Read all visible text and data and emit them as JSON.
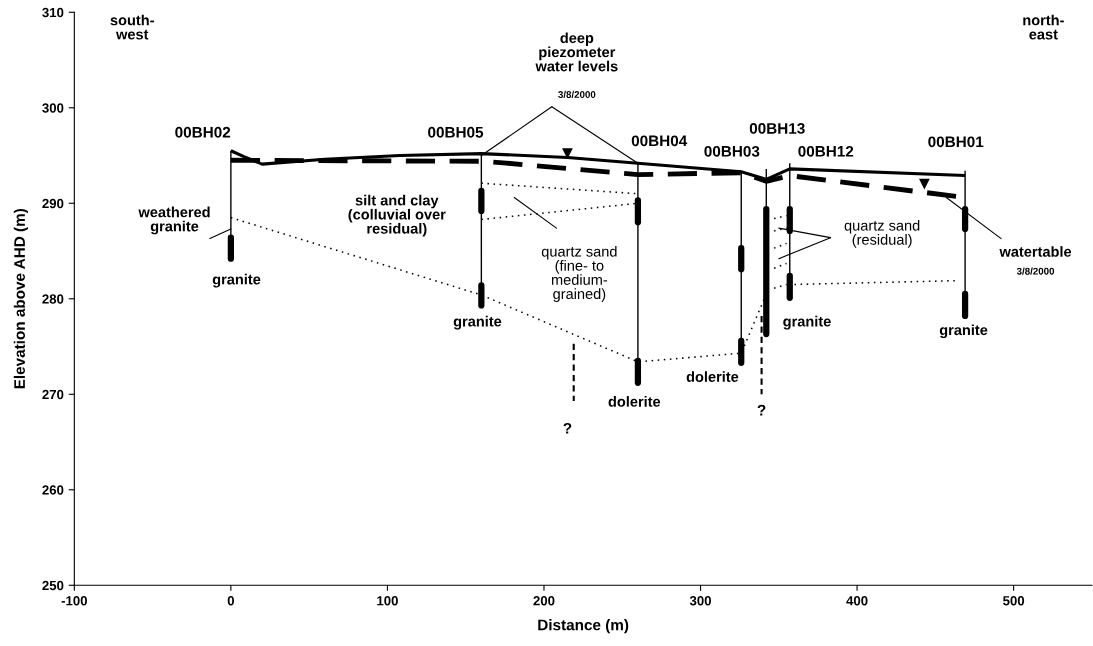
{
  "chart_data": {
    "type": "line",
    "xlabel": "Distance (m)",
    "ylabel": "Elevation above AHD (m)",
    "xlim": [
      -100,
      550
    ],
    "ylim": [
      250,
      310
    ],
    "xticks": [
      -100,
      0,
      100,
      200,
      300,
      400,
      500
    ],
    "yticks": [
      250,
      260,
      270,
      280,
      290,
      300,
      310
    ],
    "grid": false,
    "series": [
      {
        "color": "#000000",
        "line_style": "solid",
        "x": [
          0,
          8,
          20,
          60,
          108,
          160,
          215,
          260,
          326,
          342,
          357,
          469
        ],
        "values": [
          295.5,
          294.9,
          294.1,
          294.6,
          295.0,
          295.2,
          294.8,
          294.2,
          293.3,
          292.5,
          293.6,
          292.9
        ]
      },
      {
        "color": "#000000",
        "line_style": "dashed",
        "x": [
          0,
          160,
          176,
          260,
          326,
          342,
          357,
          469
        ],
        "values": [
          294.5,
          294.4,
          294.2,
          293.0,
          293.2,
          292.3,
          292.9,
          290.6
        ]
      },
      {
        "color": "#000000",
        "line_style": "solid",
        "x": [
          0,
          0
        ],
        "values": [
          295.5,
          286.4
        ]
      },
      {
        "color": "#000000",
        "line_style": "solid",
        "x": [
          160,
          160
        ],
        "values": [
          295.2,
          291.3
        ]
      },
      {
        "color": "#000000",
        "line_style": "solid",
        "x": [
          160,
          160
        ],
        "values": [
          289.2,
          281.4
        ]
      },
      {
        "color": "#000000",
        "line_style": "solid",
        "x": [
          260,
          260
        ],
        "values": [
          294.2,
          290.3
        ]
      },
      {
        "color": "#000000",
        "line_style": "solid",
        "x": [
          260,
          260
        ],
        "values": [
          288.0,
          273.5
        ]
      },
      {
        "color": "#000000",
        "line_style": "solid",
        "x": [
          326,
          326
        ],
        "values": [
          293.3,
          285.3
        ]
      },
      {
        "color": "#000000",
        "line_style": "solid",
        "x": [
          326,
          326
        ],
        "values": [
          283.1,
          275.6
        ]
      },
      {
        "color": "#000000",
        "line_style": "solid",
        "x": [
          342,
          342
        ],
        "values": [
          293.6,
          289.4
        ]
      },
      {
        "color": "#000000",
        "line_style": "solid",
        "x": [
          357,
          357
        ],
        "values": [
          294.2,
          289.4
        ]
      },
      {
        "color": "#000000",
        "line_style": "solid",
        "x": [
          357,
          357
        ],
        "values": [
          287.1,
          282.4
        ]
      },
      {
        "color": "#000000",
        "line_style": "solid",
        "x": [
          469,
          469
        ],
        "values": [
          293.4,
          289.4
        ]
      },
      {
        "color": "#000000",
        "line_style": "solid",
        "x": [
          469,
          469
        ],
        "values": [
          287.3,
          280.5
        ]
      },
      {
        "color": "#000000",
        "line_style": "solid",
        "x": [
          0,
          0
        ],
        "values": [
          286.4,
          284.2
        ]
      },
      {
        "color": "#000000",
        "line_style": "solid",
        "x": [
          160,
          160
        ],
        "values": [
          291.3,
          289.2
        ]
      },
      {
        "color": "#000000",
        "line_style": "solid",
        "x": [
          160,
          160
        ],
        "values": [
          281.4,
          279.3
        ]
      },
      {
        "color": "#000000",
        "line_style": "solid",
        "x": [
          260,
          260
        ],
        "values": [
          290.3,
          288.0
        ]
      },
      {
        "color": "#000000",
        "line_style": "solid",
        "x": [
          260,
          260
        ],
        "values": [
          273.5,
          271.2
        ]
      },
      {
        "color": "#000000",
        "line_style": "solid",
        "x": [
          326,
          326
        ],
        "values": [
          285.3,
          283.1
        ]
      },
      {
        "color": "#000000",
        "line_style": "solid",
        "x": [
          326,
          326
        ],
        "values": [
          275.6,
          273.3
        ]
      },
      {
        "color": "#000000",
        "line_style": "solid",
        "x": [
          342,
          342
        ],
        "values": [
          289.4,
          276.3
        ]
      },
      {
        "color": "#000000",
        "line_style": "solid",
        "x": [
          357,
          357
        ],
        "values": [
          289.4,
          287.1
        ]
      },
      {
        "color": "#000000",
        "line_style": "solid",
        "x": [
          357,
          357
        ],
        "values": [
          282.4,
          280.1
        ]
      },
      {
        "color": "#000000",
        "line_style": "solid",
        "x": [
          469,
          469
        ],
        "values": [
          289.4,
          287.3
        ]
      },
      {
        "color": "#000000",
        "line_style": "solid",
        "x": [
          469,
          469
        ],
        "values": [
          280.5,
          278.2
        ]
      },
      {
        "color": "#000000",
        "line_style": "dotted",
        "x": [
          0,
          160,
          260,
          326,
          342
        ],
        "values": [
          288.5,
          280.4,
          273.4,
          274.3,
          280.5
        ]
      },
      {
        "color": "#000000",
        "line_style": "dotted",
        "x": [
          160,
          260
        ],
        "values": [
          292.1,
          291.0
        ]
      },
      {
        "color": "#000000",
        "line_style": "dotted",
        "x": [
          160,
          260
        ],
        "values": [
          288.3,
          290.0
        ]
      },
      {
        "color": "#000000",
        "line_style": "dotted",
        "x": [
          347,
          355
        ],
        "values": [
          288.4,
          288.7
        ]
      },
      {
        "color": "#000000",
        "line_style": "dotted",
        "x": [
          347,
          355
        ],
        "values": [
          287.1,
          287.4
        ]
      },
      {
        "color": "#000000",
        "line_style": "dotted",
        "x": [
          347,
          355
        ],
        "values": [
          285.3,
          285.8
        ]
      },
      {
        "color": "#000000",
        "line_style": "dotted",
        "x": [
          347,
          355
        ],
        "values": [
          283.2,
          283.7
        ]
      },
      {
        "color": "#000000",
        "line_style": "dotted",
        "x": [
          347,
          355
        ],
        "values": [
          281.1,
          281.5
        ]
      },
      {
        "color": "#000000",
        "line_style": "dotted",
        "x": [
          360,
          464
        ],
        "values": [
          281.5,
          281.9
        ]
      },
      {
        "color": "#000000",
        "line_style": "dashed",
        "x": [
          219,
          219
        ],
        "values": [
          275.3,
          269.3
        ]
      },
      {
        "color": "#000000",
        "line_style": "dashed",
        "x": [
          339,
          339
        ],
        "values": [
          278.2,
          270.0
        ]
      },
      {
        "type": "scatter",
        "color": "#000000",
        "marker": "triangle",
        "x": [
          215,
          443
        ],
        "values": [
          295.2,
          292.0
        ]
      }
    ],
    "annotations": [
      "south-\nwest",
      "north-\neast",
      "deep\npiezometer\nwater levels",
      {
        "text": "3/8/2000",
        "x": 160,
        "y": 295.0
      },
      "00BH02",
      "00BH05",
      "00BH04",
      "00BH03",
      "00BH13",
      "00BH12",
      "00BH01",
      "silt and clay\n(colluvial over\nresidual)",
      "quartz sand\n(fine- to\nmedium-\ngrained)",
      {
        "text": "quartz sand\n(residual)",
        "x": 350,
        "y": 287.4
      },
      {
        "text": "weathered\ngranite",
        "x": 0,
        "y": 287.3
      },
      "granite",
      "granite",
      "dolerite",
      "dolerite",
      "granite",
      "granite",
      "?",
      "?",
      {
        "text": "watertable",
        "x": 457,
        "y": 290.6
      },
      "3/8/2000"
    ]
  }
}
